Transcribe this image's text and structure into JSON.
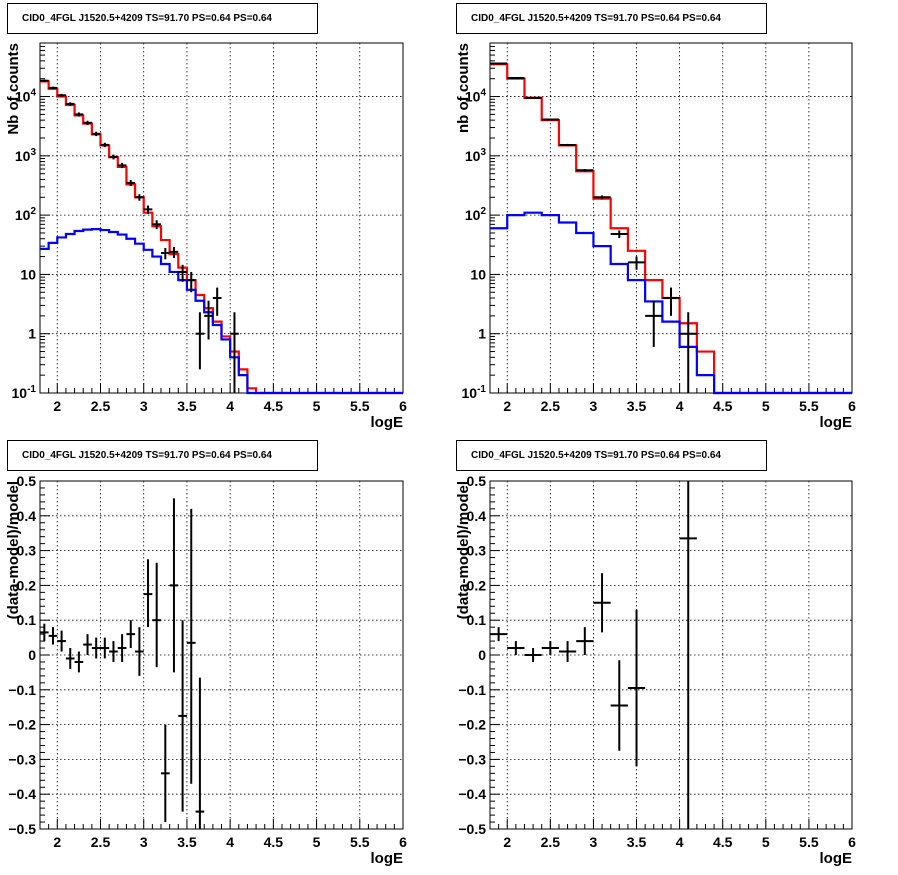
{
  "panels": [
    {
      "title": "CID0_4FGL J1520.5+4209 TS=91.70 PS=0.64 PS=0.64"
    },
    {
      "title": "CID0_4FGL J1520.5+4209 TS=91.70 PS=0.64 PS=0.64"
    },
    {
      "title": "CID0_4FGL J1520.5+4209 TS=91.70 PS=0.64 PS=0.64"
    },
    {
      "title": "CID0_4FGL J1520.5+4209 TS=91.70 PS=0.64 PS=0.64"
    }
  ],
  "colors": {
    "data": "#000000",
    "model_total": "#ff0000",
    "model_source": "#0000ff",
    "grid": "#000000"
  },
  "chart_data": [
    {
      "type": "line",
      "title": "CID0_4FGL J1520.5+4209 TS=91.70 PS=0.64 PS=0.64",
      "xlabel": "logE",
      "ylabel": "Nb of counts",
      "xlim": [
        1.8,
        6
      ],
      "ylim": [
        0.1,
        80000
      ],
      "yscale": "log",
      "grid": true,
      "xticks": [
        "2",
        "2.5",
        "3",
        "3.5",
        "4",
        "4.5",
        "5",
        "5.5",
        "6"
      ],
      "yticks": [
        "10^-1",
        "1",
        "10",
        "10^2",
        "10^3",
        "10^4"
      ],
      "bin_edges": [
        1.8,
        1.9,
        2.0,
        2.1,
        2.2,
        2.3,
        2.4,
        2.5,
        2.6,
        2.7,
        2.8,
        2.9,
        3.0,
        3.1,
        3.2,
        3.3,
        3.4,
        3.5,
        3.6,
        3.7,
        3.8,
        3.9,
        4.0,
        4.1,
        4.2,
        4.3,
        4.4,
        4.5,
        4.6,
        4.7,
        4.8,
        4.9,
        5.0,
        5.1,
        5.2,
        5.3,
        5.4,
        5.5,
        5.6,
        5.7,
        5.8,
        5.9,
        6.0
      ],
      "series": [
        {
          "values": [
            18000,
            13500,
            10000,
            7200,
            4800,
            3500,
            2300,
            1500,
            950,
            650,
            330,
            200,
            110,
            65,
            38,
            22,
            13,
            8,
            4.5,
            2.7,
            1.6,
            0.9,
            0.5,
            0.25,
            0.12,
            0.1,
            0.1,
            0.1,
            0.1,
            0.1,
            0.1,
            0.1,
            0.1,
            0.1,
            0.1,
            0.1,
            0.1,
            0.1,
            0.1,
            0.1,
            0.1,
            0.1
          ]
        },
        {
          "values": [
            27,
            34,
            42,
            48,
            54,
            57,
            58,
            56,
            52,
            47,
            40,
            33,
            26,
            20,
            15,
            11,
            8,
            5.5,
            3.6,
            2.3,
            1.4,
            0.8,
            0.4,
            0.2,
            0.1,
            0.1,
            0.1,
            0.1,
            0.1,
            0.1,
            0.1,
            0.1,
            0.1,
            0.1,
            0.1,
            0.1,
            0.1,
            0.1,
            0.1,
            0.1,
            0.1,
            0.1
          ]
        }
      ],
      "points": [
        {
          "x": 1.85,
          "y": 18500,
          "elo": 17700,
          "ehi": 19300
        },
        {
          "x": 1.95,
          "y": 14000,
          "elo": 13300,
          "ehi": 14700
        },
        {
          "x": 2.05,
          "y": 10500,
          "elo": 9900,
          "ehi": 11100
        },
        {
          "x": 2.15,
          "y": 7500,
          "elo": 7000,
          "ehi": 8000
        },
        {
          "x": 2.25,
          "y": 5000,
          "elo": 4600,
          "ehi": 5400
        },
        {
          "x": 2.35,
          "y": 3600,
          "elo": 3300,
          "ehi": 3900
        },
        {
          "x": 2.45,
          "y": 2350,
          "elo": 2150,
          "ehi": 2550
        },
        {
          "x": 2.55,
          "y": 1530,
          "elo": 1400,
          "ehi": 1660
        },
        {
          "x": 2.65,
          "y": 960,
          "elo": 870,
          "ehi": 1050
        },
        {
          "x": 2.75,
          "y": 690,
          "elo": 620,
          "ehi": 760
        },
        {
          "x": 2.85,
          "y": 350,
          "elo": 310,
          "ehi": 390
        },
        {
          "x": 2.95,
          "y": 200,
          "elo": 175,
          "ehi": 225
        },
        {
          "x": 3.05,
          "y": 125,
          "elo": 105,
          "ehi": 145
        },
        {
          "x": 3.15,
          "y": 70,
          "elo": 58,
          "ehi": 82
        },
        {
          "x": 3.25,
          "y": 23,
          "elo": 18,
          "ehi": 28
        },
        {
          "x": 3.35,
          "y": 24,
          "elo": 19,
          "ehi": 29
        },
        {
          "x": 3.45,
          "y": 11,
          "elo": 7.5,
          "ehi": 14.5
        },
        {
          "x": 3.55,
          "y": 8,
          "elo": 5,
          "ehi": 11
        },
        {
          "x": 3.65,
          "y": 1,
          "elo": 0.25,
          "ehi": 2.3
        },
        {
          "x": 3.75,
          "y": 2,
          "elo": 0.8,
          "ehi": 3.6
        },
        {
          "x": 3.85,
          "y": 4,
          "elo": 2,
          "ehi": 6
        },
        {
          "x": 4.05,
          "y": 1,
          "elo": 0.1,
          "ehi": 2.3
        }
      ]
    },
    {
      "type": "line",
      "title": "CID0_4FGL J1520.5+4209 TS=91.70 PS=0.64 PS=0.64",
      "xlabel": "logE",
      "ylabel": "nb of counts",
      "xlim": [
        1.8,
        6
      ],
      "ylim": [
        0.1,
        80000
      ],
      "yscale": "log",
      "grid": true,
      "xticks": [
        "2",
        "2.5",
        "3",
        "3.5",
        "4",
        "4.5",
        "5",
        "5.5",
        "6"
      ],
      "yticks": [
        "10^-1",
        "1",
        "10",
        "10^2",
        "10^3",
        "10^4"
      ],
      "bin_edges": [
        1.8,
        2.0,
        2.2,
        2.4,
        2.6,
        2.8,
        3.0,
        3.2,
        3.4,
        3.6,
        3.8,
        4.0,
        4.2,
        4.4,
        4.6,
        4.8,
        5.0,
        5.2,
        5.4,
        5.6,
        5.8,
        6.0
      ],
      "series": [
        {
          "values": [
            35000,
            20000,
            9500,
            4000,
            1500,
            550,
            190,
            60,
            25,
            8,
            4,
            1.5,
            0.5,
            0.1,
            0.1,
            0.1,
            0.1,
            0.1,
            0.1,
            0.1,
            0.1
          ]
        },
        {
          "values": [
            60,
            100,
            110,
            100,
            75,
            50,
            30,
            15,
            8,
            3.5,
            1.6,
            0.6,
            0.2,
            0.1,
            0.1,
            0.1,
            0.1,
            0.1,
            0.1,
            0.1,
            0.1
          ]
        }
      ],
      "points": [
        {
          "x": 1.9,
          "y": 36000,
          "elo": 35000,
          "ehi": 37000
        },
        {
          "x": 2.1,
          "y": 20500,
          "elo": 20000,
          "ehi": 21000
        },
        {
          "x": 2.3,
          "y": 9500,
          "elo": 9200,
          "ehi": 9800
        },
        {
          "x": 2.5,
          "y": 4100,
          "elo": 3950,
          "ehi": 4250
        },
        {
          "x": 2.7,
          "y": 1520,
          "elo": 1450,
          "ehi": 1590
        },
        {
          "x": 2.9,
          "y": 570,
          "elo": 540,
          "ehi": 600
        },
        {
          "x": 3.1,
          "y": 200,
          "elo": 185,
          "ehi": 215
        },
        {
          "x": 3.3,
          "y": 48,
          "elo": 41,
          "ehi": 55
        },
        {
          "x": 3.5,
          "y": 16,
          "elo": 12,
          "ehi": 20
        },
        {
          "x": 3.7,
          "y": 2,
          "elo": 0.6,
          "ehi": 3.6
        },
        {
          "x": 3.9,
          "y": 4,
          "elo": 2,
          "ehi": 6
        },
        {
          "x": 4.1,
          "y": 1,
          "elo": 0.1,
          "ehi": 2.3
        }
      ]
    },
    {
      "type": "scatter",
      "title": "CID0_4FGL J1520.5+4209 TS=91.70 PS=0.64 PS=0.64",
      "xlabel": "logE",
      "ylabel": "(data-model)/model",
      "xlim": [
        1.8,
        6
      ],
      "ylim": [
        -0.5,
        0.5
      ],
      "grid": true,
      "xticks": [
        "2",
        "2.5",
        "3",
        "3.5",
        "4",
        "4.5",
        "5",
        "5.5",
        "6"
      ],
      "yticks": [
        "−0.5",
        "−0.4",
        "−0.3",
        "−0.2",
        "−0.1",
        "0",
        "0.1",
        "0.2",
        "0.3",
        "0.4",
        "0.5"
      ],
      "xerr": 0.05,
      "points": [
        {
          "x": 1.85,
          "y": 0.065,
          "elo": 0.04,
          "ehi": 0.09
        },
        {
          "x": 1.95,
          "y": 0.055,
          "elo": 0.03,
          "ehi": 0.08
        },
        {
          "x": 2.05,
          "y": 0.04,
          "elo": 0.01,
          "ehi": 0.07
        },
        {
          "x": 2.15,
          "y": -0.01,
          "elo": -0.04,
          "ehi": 0.02
        },
        {
          "x": 2.25,
          "y": -0.02,
          "elo": -0.05,
          "ehi": 0.01
        },
        {
          "x": 2.35,
          "y": 0.03,
          "elo": 0.0,
          "ehi": 0.06
        },
        {
          "x": 2.45,
          "y": 0.02,
          "elo": -0.01,
          "ehi": 0.05
        },
        {
          "x": 2.55,
          "y": 0.02,
          "elo": -0.01,
          "ehi": 0.05
        },
        {
          "x": 2.65,
          "y": 0.01,
          "elo": -0.02,
          "ehi": 0.04
        },
        {
          "x": 2.75,
          "y": 0.02,
          "elo": -0.02,
          "ehi": 0.06
        },
        {
          "x": 2.85,
          "y": 0.06,
          "elo": 0.02,
          "ehi": 0.1
        },
        {
          "x": 2.95,
          "y": 0.01,
          "elo": -0.06,
          "ehi": 0.08
        },
        {
          "x": 3.05,
          "y": 0.175,
          "elo": 0.08,
          "ehi": 0.275
        },
        {
          "x": 3.15,
          "y": 0.1,
          "elo": -0.035,
          "ehi": 0.265
        },
        {
          "x": 3.25,
          "y": -0.34,
          "elo": -0.48,
          "ehi": -0.2
        },
        {
          "x": 3.35,
          "y": 0.2,
          "elo": -0.05,
          "ehi": 0.45
        },
        {
          "x": 3.45,
          "y": -0.175,
          "elo": -0.45,
          "ehi": 0.1
        },
        {
          "x": 3.55,
          "y": 0.035,
          "elo": -0.37,
          "ehi": 0.42
        },
        {
          "x": 3.65,
          "y": -0.45,
          "elo": -0.5,
          "ehi": -0.065
        }
      ]
    },
    {
      "type": "scatter",
      "title": "CID0_4FGL J1520.5+4209 TS=91.70 PS=0.64 PS=0.64",
      "xlabel": "logE",
      "ylabel": "(data-model)/model",
      "xlim": [
        1.8,
        6
      ],
      "ylim": [
        -0.5,
        0.5
      ],
      "grid": true,
      "xticks": [
        "2",
        "2.5",
        "3",
        "3.5",
        "4",
        "4.5",
        "5",
        "5.5",
        "6"
      ],
      "yticks": [
        "−0.5",
        "−0.4",
        "−0.3",
        "−0.2",
        "−0.1",
        "0",
        "0.1",
        "0.2",
        "0.3",
        "0.4",
        "0.5"
      ],
      "xerr": 0.1,
      "points": [
        {
          "x": 1.9,
          "y": 0.06,
          "elo": 0.04,
          "ehi": 0.08
        },
        {
          "x": 2.1,
          "y": 0.02,
          "elo": 0.0,
          "ehi": 0.04
        },
        {
          "x": 2.3,
          "y": 0.0,
          "elo": -0.02,
          "ehi": 0.02
        },
        {
          "x": 2.5,
          "y": 0.02,
          "elo": 0.0,
          "ehi": 0.04
        },
        {
          "x": 2.7,
          "y": 0.01,
          "elo": -0.02,
          "ehi": 0.04
        },
        {
          "x": 2.9,
          "y": 0.04,
          "elo": 0.0,
          "ehi": 0.08
        },
        {
          "x": 3.1,
          "y": 0.15,
          "elo": 0.065,
          "ehi": 0.235
        },
        {
          "x": 3.3,
          "y": -0.145,
          "elo": -0.275,
          "ehi": -0.015
        },
        {
          "x": 3.5,
          "y": -0.095,
          "elo": -0.32,
          "ehi": 0.13
        },
        {
          "x": 4.1,
          "y": 0.335,
          "elo": -0.5,
          "ehi": 0.5
        }
      ]
    }
  ]
}
